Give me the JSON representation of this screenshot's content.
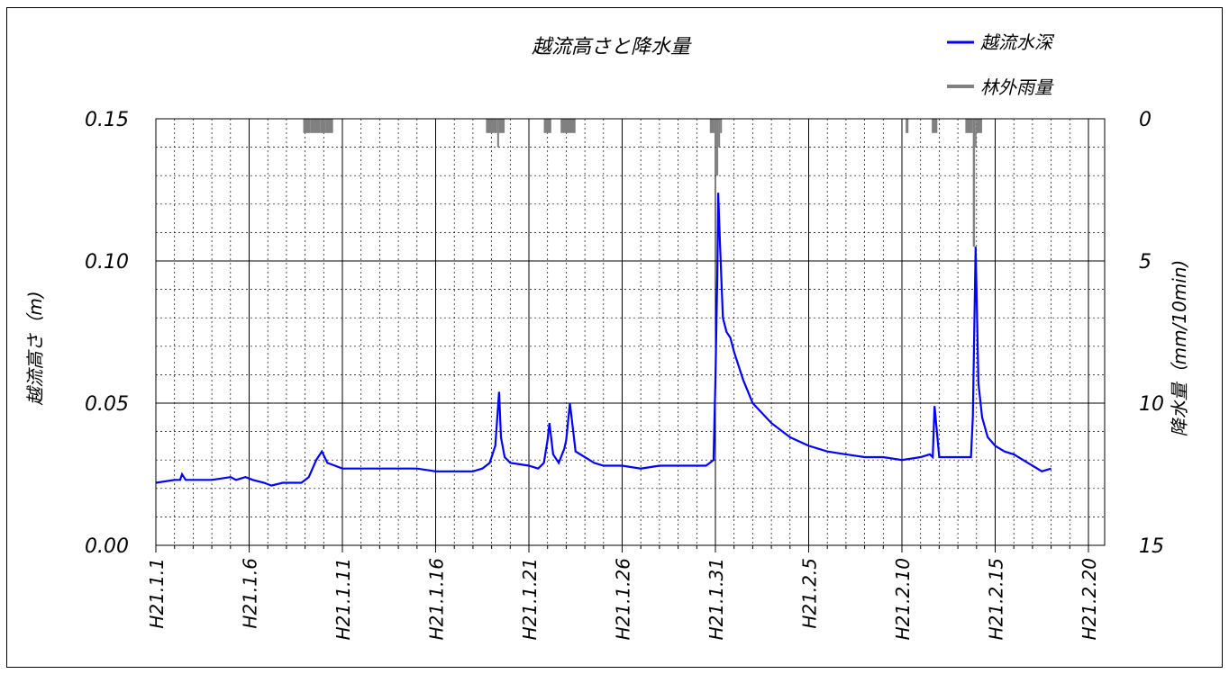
{
  "chart_data": {
    "type": "line",
    "title": "越流高さと降水量",
    "ylabel": "越流高さ（m)",
    "y2label": "降水量（mm/10min)",
    "ylim": [
      0,
      0.15
    ],
    "y2lim": [
      15,
      0
    ],
    "y2_inverted": true,
    "yticks": [
      "0.00",
      "0.05",
      "0.10",
      "0.15"
    ],
    "y2ticks": [
      "0",
      "5",
      "10",
      "15"
    ],
    "xticks": [
      "H21.1.1",
      "H21.1.6",
      "H21.1.11",
      "H21.1.16",
      "H21.1.21",
      "H21.1.26",
      "H21.1.31",
      "H21.2.5",
      "H21.2.10",
      "H21.2.15",
      "H21.2.20"
    ],
    "xlim_days": [
      0,
      50
    ],
    "x_minor_step_days": 1,
    "grid": true,
    "legend_position": "top-right",
    "series": [
      {
        "name": "越流水深",
        "axis": "left",
        "color": "#0000ff",
        "x_days": [
          0,
          1,
          1.3,
          1.4,
          1.6,
          3,
          4,
          4.3,
          4.8,
          5.2,
          5.8,
          6.2,
          6.8,
          7.2,
          7.8,
          8.2,
          8.6,
          8.9,
          9.2,
          9.6,
          10,
          11,
          12,
          13,
          14,
          15,
          16,
          17,
          17.5,
          17.9,
          18.2,
          18.4,
          18.5,
          18.7,
          19,
          20,
          20.5,
          20.8,
          21,
          21.1,
          21.3,
          21.6,
          21.9,
          22,
          22.2,
          22.5,
          23,
          23.5,
          24,
          25,
          26,
          27,
          28,
          29,
          29.5,
          29.9,
          30,
          30.1,
          30.15,
          30.25,
          30.4,
          30.6,
          30.8,
          31,
          31.5,
          32,
          33,
          34,
          35,
          36,
          37,
          38,
          39,
          40,
          41,
          41.5,
          41.65,
          41.75,
          42,
          43,
          43.5,
          43.7,
          43.8,
          43.95,
          44.1,
          44.3,
          44.6,
          45,
          45.5,
          46,
          46.5,
          47,
          47.5,
          48
        ],
        "values": [
          0.022,
          0.023,
          0.023,
          0.025,
          0.023,
          0.023,
          0.024,
          0.023,
          0.024,
          0.023,
          0.022,
          0.021,
          0.022,
          0.022,
          0.022,
          0.024,
          0.03,
          0.033,
          0.029,
          0.028,
          0.027,
          0.027,
          0.027,
          0.027,
          0.027,
          0.026,
          0.026,
          0.026,
          0.027,
          0.029,
          0.035,
          0.054,
          0.038,
          0.031,
          0.029,
          0.028,
          0.027,
          0.029,
          0.037,
          0.043,
          0.032,
          0.029,
          0.034,
          0.037,
          0.05,
          0.033,
          0.031,
          0.029,
          0.028,
          0.028,
          0.027,
          0.028,
          0.028,
          0.028,
          0.028,
          0.03,
          0.058,
          0.095,
          0.124,
          0.105,
          0.08,
          0.075,
          0.073,
          0.068,
          0.058,
          0.05,
          0.043,
          0.038,
          0.035,
          0.033,
          0.032,
          0.031,
          0.031,
          0.03,
          0.031,
          0.032,
          0.031,
          0.049,
          0.031,
          0.031,
          0.031,
          0.031,
          0.045,
          0.105,
          0.057,
          0.045,
          0.038,
          0.035,
          0.033,
          0.032,
          0.03,
          0.028,
          0.026,
          0.027
        ]
      },
      {
        "name": "林外雨量",
        "axis": "right",
        "color": "#808080",
        "bars": [
          {
            "start_day": 7.9,
            "end_day": 8.3,
            "value": 0.5
          },
          {
            "start_day": 8.3,
            "end_day": 8.8,
            "value": 0.5
          },
          {
            "start_day": 8.8,
            "end_day": 9.1,
            "value": 0.5
          },
          {
            "start_day": 9.1,
            "end_day": 9.5,
            "value": 0.5
          },
          {
            "start_day": 17.7,
            "end_day": 18.3,
            "value": 0.5
          },
          {
            "start_day": 18.3,
            "end_day": 18.4,
            "value": 1.0
          },
          {
            "start_day": 18.4,
            "end_day": 18.7,
            "value": 0.5
          },
          {
            "start_day": 20.8,
            "end_day": 21.2,
            "value": 0.5
          },
          {
            "start_day": 21.7,
            "end_day": 22.5,
            "value": 0.5
          },
          {
            "start_day": 29.7,
            "end_day": 29.95,
            "value": 0.5
          },
          {
            "start_day": 29.95,
            "end_day": 30.05,
            "value": 1.0
          },
          {
            "start_day": 30.05,
            "end_day": 30.15,
            "value": 2.0
          },
          {
            "start_day": 30.15,
            "end_day": 30.25,
            "value": 1.0
          },
          {
            "start_day": 30.25,
            "end_day": 30.35,
            "value": 0.5
          },
          {
            "start_day": 40.2,
            "end_day": 40.35,
            "value": 0.5
          },
          {
            "start_day": 41.6,
            "end_day": 41.9,
            "value": 0.5
          },
          {
            "start_day": 43.4,
            "end_day": 43.8,
            "value": 0.5
          },
          {
            "start_day": 43.8,
            "end_day": 43.92,
            "value": 4.5
          },
          {
            "start_day": 43.92,
            "end_day": 44.0,
            "value": 1.0
          },
          {
            "start_day": 44.0,
            "end_day": 44.3,
            "value": 0.5
          }
        ]
      }
    ]
  }
}
